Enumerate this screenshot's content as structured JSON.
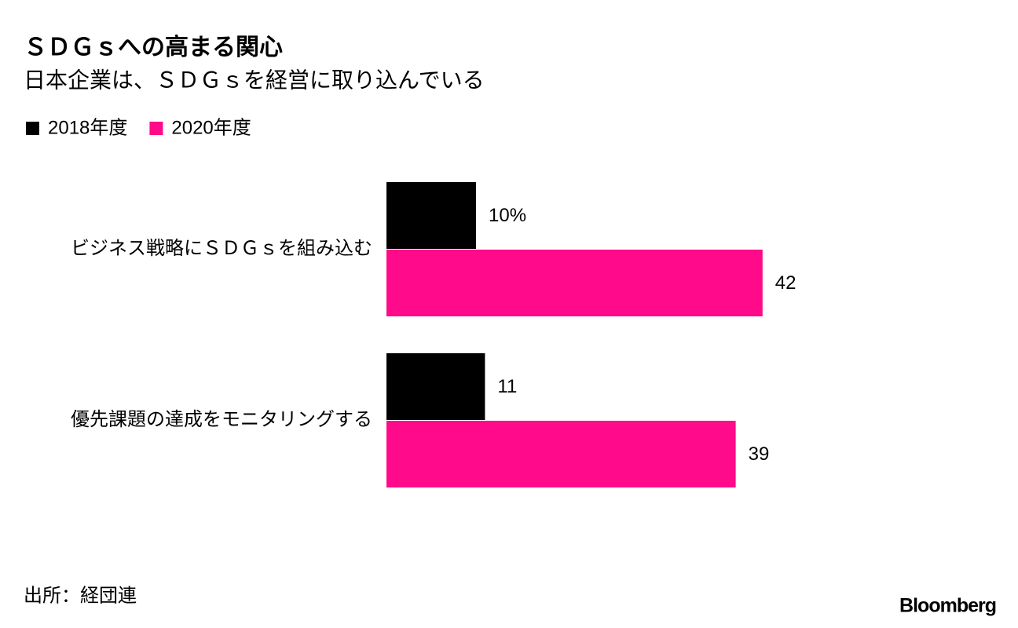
{
  "chart_data": {
    "type": "bar",
    "orientation": "horizontal",
    "title": "ＳＤＧｓへの高まる関心",
    "subtitle": "日本企業は、ＳＤＧｓを経営に取り込んでいる",
    "categories": [
      "ビジネス戦略にＳＤＧｓを組み込む",
      "優先課題の達成をモニタリングする"
    ],
    "series": [
      {
        "name": "2018年度",
        "color": "#000000",
        "values": [
          10,
          11
        ],
        "value_labels": [
          "10%",
          "11"
        ]
      },
      {
        "name": "2020年度",
        "color": "#ff0a8a",
        "values": [
          42,
          39
        ],
        "value_labels": [
          "42",
          "39"
        ]
      }
    ],
    "source": "出所：経団連"
  },
  "brand": "Bloomberg"
}
